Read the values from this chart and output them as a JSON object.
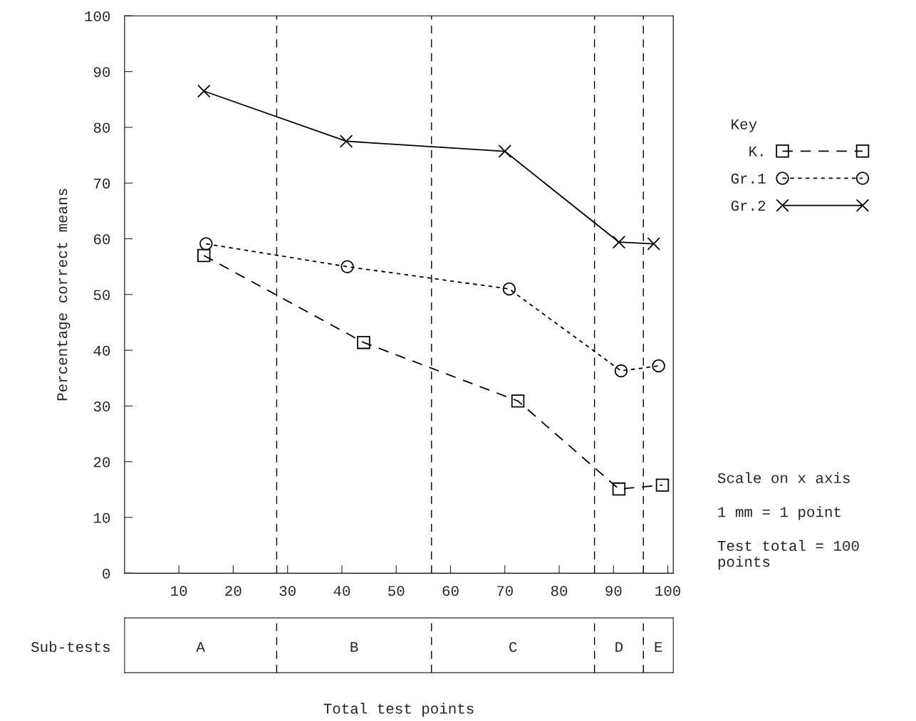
{
  "chart_data": {
    "type": "line",
    "ylabel": "Percentage correct means",
    "legend_title": "Key",
    "series": [
      {
        "name": "K.",
        "color": "#000000",
        "marker": "square",
        "line_style": "dashed",
        "x": [
          14.6,
          44,
          72.4,
          91,
          99
        ],
        "values": [
          57,
          41.4,
          30.9,
          15.1,
          15.8
        ]
      },
      {
        "name": "Gr.1",
        "color": "#000000",
        "marker": "circle",
        "line_style": "dotted",
        "x": [
          15,
          41,
          70.8,
          91.4,
          98.3
        ],
        "values": [
          59.1,
          55,
          51,
          36.3,
          37.2
        ]
      },
      {
        "name": "Gr.2",
        "color": "#000000",
        "marker": "cross",
        "line_style": "solid",
        "x": [
          14.6,
          40.8,
          70,
          91,
          97.4
        ],
        "values": [
          86.5,
          77.5,
          75.7,
          59.4,
          59.1
        ]
      }
    ],
    "xlim": [
      0,
      101
    ],
    "xticks": [
      10,
      20,
      30,
      40,
      50,
      60,
      70,
      80,
      90,
      100
    ],
    "ylim": [
      0,
      100
    ],
    "yticks": [
      0,
      10,
      20,
      30,
      40,
      50,
      60,
      70,
      80,
      90,
      100
    ],
    "grid": false,
    "legend": "right",
    "ref_lines": [
      {
        "axis": "x",
        "value": 28,
        "line_style": "dashed"
      },
      {
        "axis": "x",
        "value": 56.5,
        "line_style": "dashed"
      },
      {
        "axis": "x",
        "value": 86.5,
        "line_style": "dashed"
      },
      {
        "axis": "x",
        "value": 95.5,
        "line_style": "dashed"
      }
    ],
    "annotations": [
      "Sub-tests",
      "Scale on x axis",
      "1 mm = 1 point",
      "Test total = 100 points",
      "Total test points",
      "A",
      "B",
      "C",
      "D",
      "E"
    ]
  }
}
